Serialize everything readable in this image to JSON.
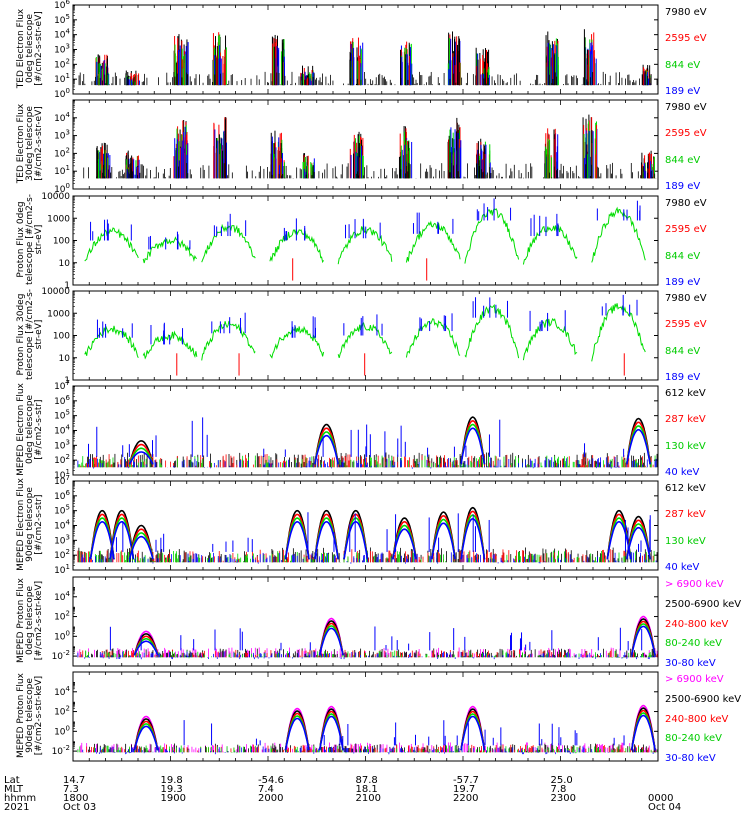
{
  "footer": {
    "row_labels": [
      "Lat",
      "MLT",
      "hhmm",
      "2021"
    ],
    "columns": [
      {
        "lat": "14.7",
        "mlt": "7.3",
        "hhmm": "1800",
        "date": "Oct 03"
      },
      {
        "lat": "19.8",
        "mlt": "19.3",
        "hhmm": "1900",
        "date": ""
      },
      {
        "lat": "-54.6",
        "mlt": "7.4",
        "hhmm": "2000",
        "date": ""
      },
      {
        "lat": "87.8",
        "mlt": "18.1",
        "hhmm": "2100",
        "date": ""
      },
      {
        "lat": "-57.7",
        "mlt": "19.7",
        "hhmm": "2200",
        "date": ""
      },
      {
        "lat": "25.0",
        "mlt": "7.8",
        "hhmm": "2300",
        "date": ""
      },
      {
        "lat": "",
        "mlt": "",
        "hhmm": "0000",
        "date": "Oct 04"
      }
    ]
  },
  "chart_data": [
    {
      "type": "line",
      "ylabel": "TED Electron Flux 0deg telescope [#/cm2-s-str-eV]",
      "log_scale": true,
      "ylim": [
        1,
        1000000
      ],
      "yticks": [
        "10^0",
        "10^1",
        "10^2",
        "10^3",
        "10^4",
        "10^5",
        "10^6"
      ],
      "x_range_hours": [
        18,
        24
      ],
      "series": [
        {
          "name": "7980 eV",
          "color": "#000000"
        },
        {
          "name": "2595 eV",
          "color": "#ff0000"
        },
        {
          "name": "844 eV",
          "color": "#00dd00"
        },
        {
          "name": "189 eV",
          "color": "#0000ff"
        }
      ],
      "peak_hours": [
        18.3,
        18.6,
        19.1,
        19.5,
        20.1,
        20.4,
        20.9,
        21.4,
        21.9,
        22.2,
        22.9,
        23.3,
        23.9
      ],
      "peak_log_values": [
        2.8,
        1.6,
        4.1,
        4.4,
        4.0,
        2.0,
        4.0,
        3.8,
        4.3,
        3.4,
        4.3,
        4.4,
        2.0
      ]
    },
    {
      "type": "line",
      "ylabel": "TED Electron Flux 30deg telescope [#/cm2-s-str-eV]",
      "log_scale": true,
      "ylim": [
        1,
        100000
      ],
      "yticks": [
        "10^0",
        "10^1",
        "10^2",
        "10^3",
        "10^4"
      ],
      "x_range_hours": [
        18,
        24
      ],
      "series": [
        {
          "name": "7980 eV",
          "color": "#000000"
        },
        {
          "name": "2595 eV",
          "color": "#ff0000"
        },
        {
          "name": "844 eV",
          "color": "#00dd00"
        },
        {
          "name": "189 eV",
          "color": "#0000ff"
        }
      ],
      "peak_hours": [
        18.3,
        18.6,
        19.1,
        19.5,
        20.1,
        20.4,
        20.9,
        21.4,
        21.9,
        22.2,
        22.9,
        23.3,
        23.9
      ],
      "peak_log_values": [
        2.6,
        2.2,
        4.0,
        4.2,
        3.4,
        2.2,
        3.3,
        3.6,
        4.0,
        3.0,
        3.7,
        4.2,
        2.2
      ]
    },
    {
      "type": "line",
      "ylabel": "Proton Flux 0deg telescope [#/cm2-s-str-eV]",
      "log_scale": true,
      "ylim": [
        1,
        10000
      ],
      "yticks": [
        "1",
        "10",
        "100",
        "1000",
        "10000"
      ],
      "x_range_hours": [
        18,
        24
      ],
      "series": [
        {
          "name": "7980 eV",
          "color": "#000000"
        },
        {
          "name": "2595 eV",
          "color": "#ff0000"
        },
        {
          "name": "844 eV",
          "color": "#00dd00"
        },
        {
          "name": "189 eV",
          "color": "#0000ff"
        }
      ],
      "arc_centers_hours": [
        18.4,
        19.0,
        19.6,
        20.3,
        21.0,
        21.7,
        22.3,
        22.9,
        23.6
      ],
      "arc_log_values": [
        2.4,
        2.0,
        2.6,
        2.4,
        2.5,
        2.7,
        3.3,
        2.6,
        3.3
      ]
    },
    {
      "type": "line",
      "ylabel": "Proton Flux 30deg telescope [#/cm2-s-str-eV]",
      "log_scale": true,
      "ylim": [
        1,
        10000
      ],
      "yticks": [
        "1",
        "10",
        "100",
        "1000",
        "10000"
      ],
      "x_range_hours": [
        18,
        24
      ],
      "series": [
        {
          "name": "7980 eV",
          "color": "#000000"
        },
        {
          "name": "2595 eV",
          "color": "#ff0000"
        },
        {
          "name": "844 eV",
          "color": "#00dd00"
        },
        {
          "name": "189 eV",
          "color": "#0000ff"
        }
      ],
      "arc_centers_hours": [
        18.4,
        19.0,
        19.6,
        20.3,
        21.0,
        21.7,
        22.3,
        22.9,
        23.6
      ],
      "arc_log_values": [
        2.3,
        2.0,
        2.5,
        2.3,
        2.4,
        2.6,
        3.2,
        2.6,
        3.3
      ]
    },
    {
      "type": "line",
      "ylabel": "MEPED Electron Flux 0deg telescope [#/cm2-s-str]",
      "log_scale": true,
      "ylim": [
        10,
        10000000
      ],
      "yticks": [
        "10^1",
        "10^2",
        "10^3",
        "10^4",
        "10^5",
        "10^6",
        "10^7"
      ],
      "x_range_hours": [
        18,
        24
      ],
      "series": [
        {
          "name": "612 keV",
          "color": "#000000"
        },
        {
          "name": "287 keV",
          "color": "#ff0000"
        },
        {
          "name": "130 keV",
          "color": "#00dd00"
        },
        {
          "name": "40 keV",
          "color": "#0000ff"
        }
      ],
      "dome_centers_hours": [
        18.7,
        20.6,
        22.1,
        23.8
      ],
      "dome_log_peaks": [
        3.3,
        4.4,
        4.9,
        4.8
      ]
    },
    {
      "type": "line",
      "ylabel": "MEPED Electron Flux 90deg telescope [#/cm2-s-str]",
      "log_scale": true,
      "ylim": [
        10,
        10000000
      ],
      "yticks": [
        "10^1",
        "10^2",
        "10^3",
        "10^4",
        "10^5",
        "10^6",
        "10^7"
      ],
      "x_range_hours": [
        18,
        24
      ],
      "series": [
        {
          "name": "612 keV",
          "color": "#000000"
        },
        {
          "name": "287 keV",
          "color": "#ff0000"
        },
        {
          "name": "130 keV",
          "color": "#00dd00"
        },
        {
          "name": "40 keV",
          "color": "#0000ff"
        }
      ],
      "dome_centers_hours": [
        18.3,
        18.5,
        18.7,
        20.3,
        20.6,
        20.9,
        21.4,
        21.8,
        22.1,
        23.6,
        23.8
      ],
      "dome_log_peaks": [
        5.0,
        5.0,
        4.0,
        5.0,
        5.0,
        5.0,
        4.5,
        4.9,
        5.2,
        5.0,
        4.6
      ]
    },
    {
      "type": "line",
      "ylabel": "MEPED Proton Flux 0deg telescope [#/cm2-s-str-keV]",
      "log_scale": true,
      "ylim": [
        0.001,
        1000000
      ],
      "yticks": [
        "10^-2",
        "10^0",
        "10^2",
        "10^4"
      ],
      "x_range_hours": [
        18,
        24
      ],
      "series": [
        {
          "name": "> 6900 keV",
          "color": "#ff00ff"
        },
        {
          "name": "2500-6900 keV",
          "color": "#000000"
        },
        {
          "name": "240-800 keV",
          "color": "#ff0000"
        },
        {
          "name": "80-240 keV",
          "color": "#00dd00"
        },
        {
          "name": "30-80 keV",
          "color": "#0000ff"
        }
      ],
      "dome_centers_hours": [
        18.75,
        20.65,
        23.85
      ],
      "dome_log_peaks": [
        0.5,
        1.8,
        2.0
      ]
    },
    {
      "type": "line",
      "ylabel": "MEPED Proton Flux 90deg telescope [#/cm2-s-str-keV]",
      "log_scale": true,
      "ylim": [
        0.001,
        1000000
      ],
      "yticks": [
        "10^-2",
        "10^0",
        "10^2",
        "10^4"
      ],
      "x_range_hours": [
        18,
        24
      ],
      "series": [
        {
          "name": "> 6900 keV",
          "color": "#ff00ff"
        },
        {
          "name": "2500-6900 keV",
          "color": "#000000"
        },
        {
          "name": "240-800 keV",
          "color": "#ff0000"
        },
        {
          "name": "80-240 keV",
          "color": "#00dd00"
        },
        {
          "name": "30-80 keV",
          "color": "#0000ff"
        }
      ],
      "dome_centers_hours": [
        18.75,
        20.3,
        20.65,
        22.1,
        23.85
      ],
      "dome_log_peaks": [
        1.5,
        2.3,
        2.5,
        2.5,
        2.6
      ]
    }
  ]
}
